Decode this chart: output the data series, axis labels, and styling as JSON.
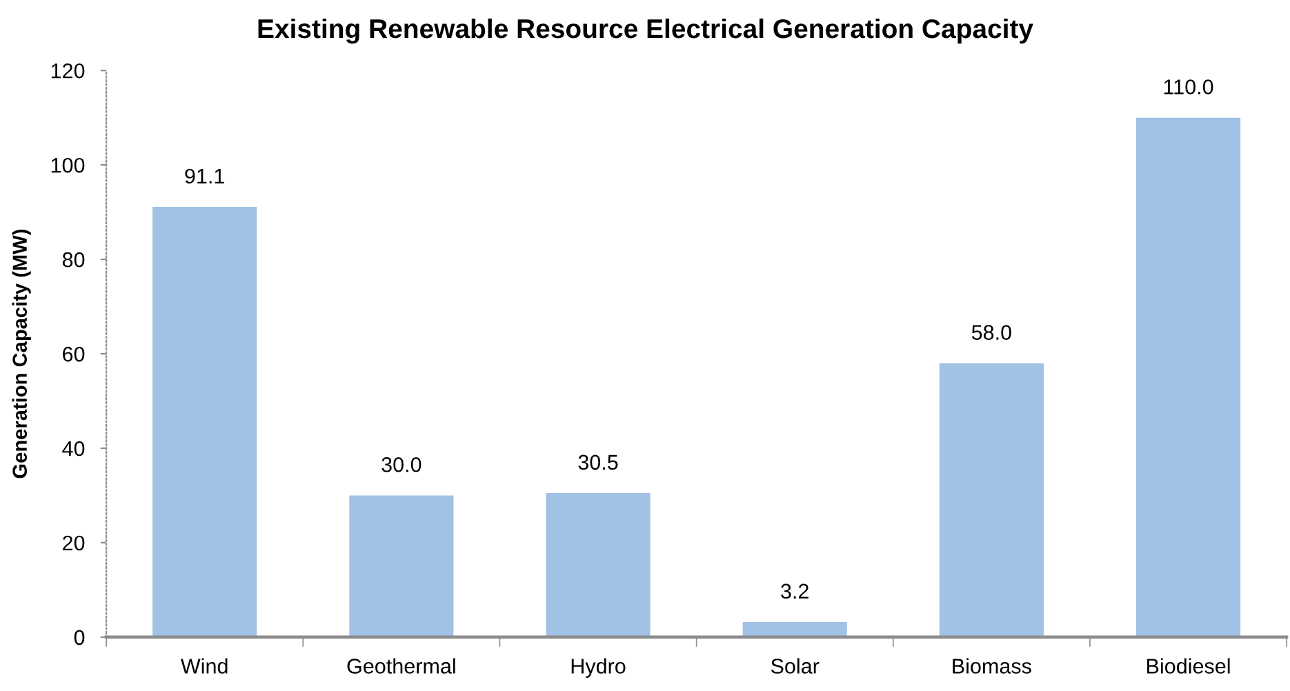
{
  "chart_data": {
    "type": "bar",
    "title": "Existing Renewable Resource Electrical Generation Capacity",
    "ylabel": "Generation Capacity (MW)",
    "categories": [
      "Wind",
      "Geothermal",
      "Hydro",
      "Solar",
      "Biomass",
      "Biodiesel"
    ],
    "values": [
      91.1,
      30.0,
      30.5,
      3.2,
      58.0,
      110.0
    ],
    "color": "#a1c1e5",
    "value_labels": [
      "91.1",
      "30.0",
      "30.5",
      "3.2",
      "58.0",
      "110.0"
    ],
    "ylim": [
      0,
      120
    ],
    "yticks": [
      0,
      20,
      40,
      60,
      80,
      100,
      120
    ],
    "grid": false
  }
}
